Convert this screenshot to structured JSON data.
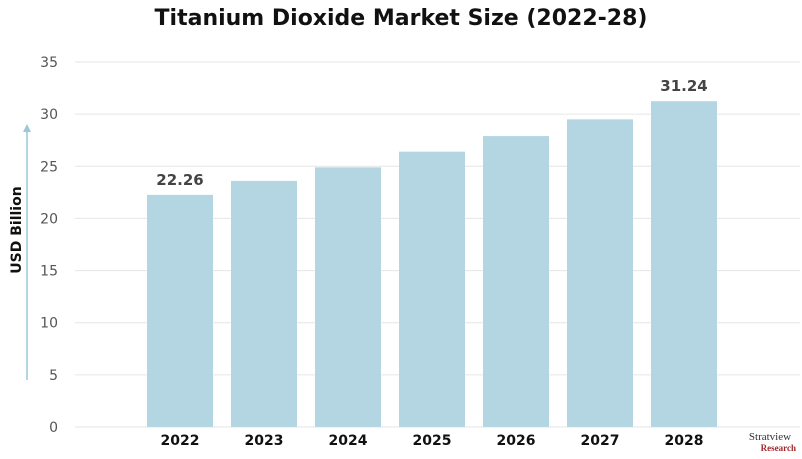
{
  "chart_data": {
    "type": "bar",
    "title": "Titanium Dioxide Market Size (2022-28)",
    "xlabel": "",
    "ylabel": "USD Billion",
    "categories": [
      "2022",
      "2023",
      "2024",
      "2025",
      "2026",
      "2027",
      "2028"
    ],
    "values": [
      22.26,
      23.6,
      24.9,
      26.4,
      27.9,
      29.5,
      31.24
    ],
    "data_labels": {
      "2022": "22.26",
      "2028": "31.24"
    },
    "ylim": [
      0,
      35
    ],
    "yticks": [
      0,
      5,
      10,
      15,
      20,
      25,
      30,
      35
    ],
    "grid": true,
    "colors": {
      "bar": "#b4d6e3",
      "grid": "#e6e6e6",
      "axis_arrow": "#9cc8d8"
    }
  },
  "logo": {
    "name": "Stratview",
    "sub": "Research"
  }
}
